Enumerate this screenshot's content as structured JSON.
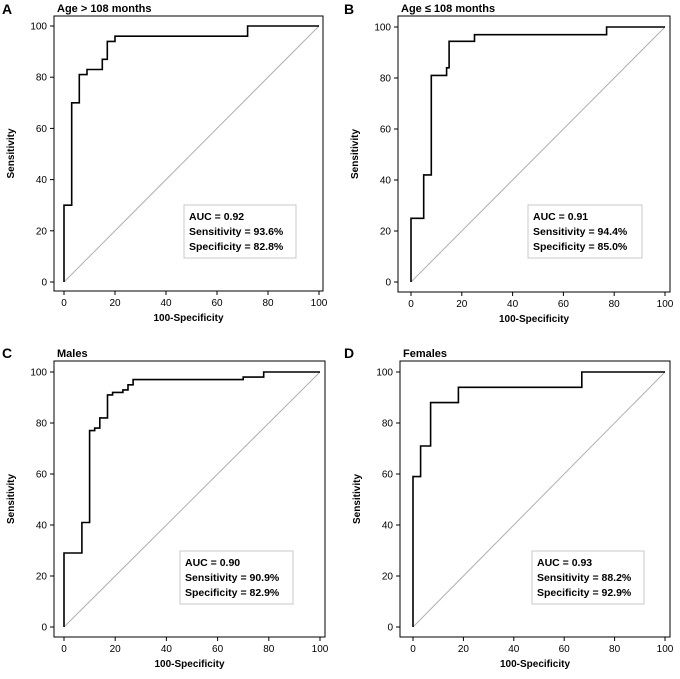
{
  "figure": {
    "xlabel": "100-Specificity",
    "ylabel": "Sensitivity",
    "ticks": [
      "0",
      "20",
      "40",
      "60",
      "80",
      "100"
    ],
    "line_color": "#000000",
    "diagonal_color": "#b0b0b0"
  },
  "chart_data": [
    {
      "type": "line",
      "panel": "A",
      "title": "Age > 108 months",
      "xlabel": "100-Specificity",
      "ylabel": "Sensitivity",
      "xlim": [
        0,
        100
      ],
      "ylim": [
        0,
        100
      ],
      "x": [
        0,
        0,
        3,
        3,
        6,
        6,
        9,
        9,
        15,
        15,
        17,
        17,
        20,
        20,
        72,
        72,
        100
      ],
      "y": [
        0,
        30,
        30,
        70,
        70,
        81,
        81,
        83,
        83,
        87,
        87,
        94,
        94,
        96,
        96,
        100,
        100
      ],
      "reference_line": [
        [
          0,
          0
        ],
        [
          100,
          100
        ]
      ],
      "stats": [
        "AUC = 0.92",
        "Sensitivity = 93.6%",
        "Specificity = 82.8%"
      ]
    },
    {
      "type": "line",
      "panel": "B",
      "title": "Age ≤ 108 months",
      "xlabel": "100-Specificity",
      "ylabel": "Sensitivity",
      "xlim": [
        0,
        100
      ],
      "ylim": [
        0,
        100
      ],
      "x": [
        0,
        0,
        5,
        5,
        8,
        8,
        12,
        12,
        14,
        14,
        15,
        15,
        25,
        25,
        77,
        77,
        100
      ],
      "y": [
        0,
        25,
        25,
        42,
        42,
        81,
        81,
        81,
        81,
        84,
        84,
        94.4,
        94.4,
        97,
        97,
        100,
        100
      ],
      "reference_line": [
        [
          0,
          0
        ],
        [
          100,
          100
        ]
      ],
      "stats": [
        "AUC = 0.91",
        "Sensitivity = 94.4%",
        "Specificity = 85.0%"
      ]
    },
    {
      "type": "line",
      "panel": "C",
      "title": "Males",
      "xlabel": "100-Specificity",
      "ylabel": "Sensitivity",
      "xlim": [
        0,
        100
      ],
      "ylim": [
        0,
        100
      ],
      "x": [
        0,
        0,
        7,
        7,
        10,
        10,
        12,
        12,
        14,
        14,
        17,
        17,
        19,
        19,
        23,
        23,
        25,
        25,
        27,
        27,
        70,
        70,
        78,
        78,
        100
      ],
      "y": [
        0,
        29,
        29,
        41,
        41,
        77,
        77,
        78,
        78,
        82,
        82,
        91,
        91,
        92,
        92,
        93,
        93,
        95,
        95,
        97,
        97,
        98,
        98,
        100,
        100
      ],
      "reference_line": [
        [
          0,
          0
        ],
        [
          100,
          100
        ]
      ],
      "stats": [
        "AUC = 0.90",
        "Sensitivity = 90.9%",
        "Specificity = 82.9%"
      ]
    },
    {
      "type": "line",
      "panel": "D",
      "title": "Females",
      "xlabel": "100-Specificity",
      "ylabel": "Sensitivity",
      "xlim": [
        0,
        100
      ],
      "ylim": [
        0,
        100
      ],
      "x": [
        0,
        0,
        3,
        3,
        7,
        7,
        18,
        18,
        67,
        67,
        100
      ],
      "y": [
        0,
        59,
        59,
        71,
        71,
        88,
        88,
        94,
        94,
        100,
        100
      ],
      "reference_line": [
        [
          0,
          0
        ],
        [
          100,
          100
        ]
      ],
      "stats": [
        "AUC = 0.93",
        "Sensitivity = 88.2%",
        "Specificity = 92.9%"
      ]
    }
  ]
}
